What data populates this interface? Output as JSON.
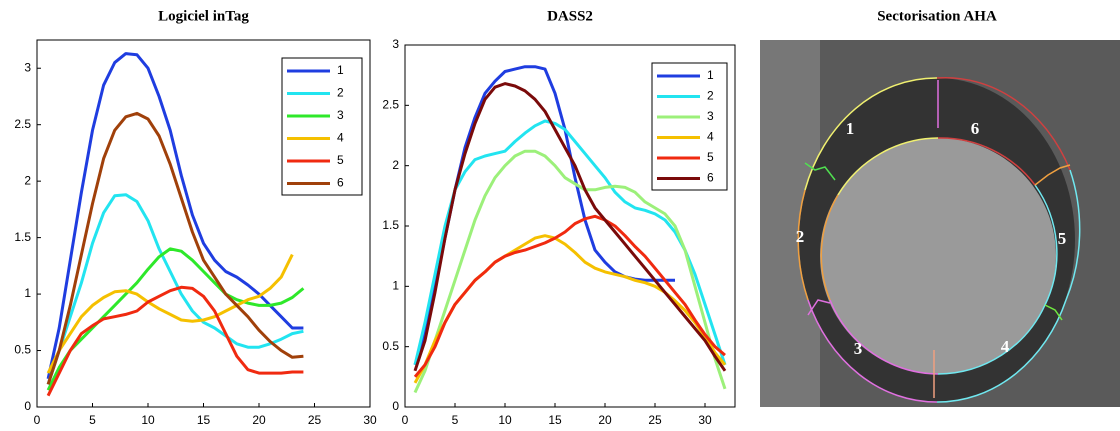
{
  "chart_data": [
    {
      "type": "line",
      "title": "Logiciel inTag",
      "legend": "upper right",
      "xlim": [
        0,
        30
      ],
      "xticks": [
        0,
        5,
        10,
        15,
        20,
        25,
        30
      ],
      "ylim": [
        0,
        3.25
      ],
      "yticks": [
        0,
        0.5,
        1,
        1.5,
        2,
        2.5,
        3
      ],
      "x": [
        1,
        2,
        3,
        4,
        5,
        6,
        7,
        8,
        9,
        10,
        11,
        12,
        13,
        14,
        15,
        16,
        17,
        18,
        19,
        20,
        21,
        22,
        23,
        24
      ],
      "series": [
        {
          "name": "1",
          "color": "#1f3de0",
          "values": [
            0.25,
            0.7,
            1.3,
            1.9,
            2.45,
            2.85,
            3.05,
            3.13,
            3.12,
            3.0,
            2.75,
            2.45,
            2.05,
            1.7,
            1.45,
            1.3,
            1.2,
            1.15,
            1.08,
            1.0,
            0.9,
            0.8,
            0.7,
            0.7
          ]
        },
        {
          "name": "2",
          "color": "#22e4f0",
          "values": [
            0.2,
            0.5,
            0.8,
            1.1,
            1.45,
            1.72,
            1.87,
            1.88,
            1.82,
            1.65,
            1.4,
            1.2,
            1.0,
            0.85,
            0.75,
            0.7,
            0.63,
            0.56,
            0.53,
            0.53,
            0.56,
            0.6,
            0.65,
            0.67
          ]
        },
        {
          "name": "3",
          "color": "#2ee82a",
          "values": [
            0.15,
            0.35,
            0.5,
            0.6,
            0.7,
            0.8,
            0.9,
            1.0,
            1.1,
            1.22,
            1.33,
            1.4,
            1.38,
            1.3,
            1.2,
            1.1,
            1.0,
            0.95,
            0.92,
            0.9,
            0.9,
            0.92,
            0.97,
            1.05
          ]
        },
        {
          "name": "4",
          "color": "#f5c000",
          "values": [
            0.3,
            0.5,
            0.65,
            0.8,
            0.9,
            0.97,
            1.02,
            1.03,
            1.0,
            0.93,
            0.87,
            0.82,
            0.77,
            0.76,
            0.77,
            0.8,
            0.85,
            0.9,
            0.95,
            0.98,
            1.05,
            1.15,
            1.35,
            null
          ]
        },
        {
          "name": "5",
          "color": "#f02a10",
          "values": [
            0.1,
            0.3,
            0.5,
            0.65,
            0.72,
            0.78,
            0.8,
            0.82,
            0.85,
            0.93,
            0.98,
            1.03,
            1.06,
            1.05,
            0.98,
            0.85,
            0.65,
            0.45,
            0.33,
            0.3,
            0.3,
            0.3,
            0.31,
            0.31
          ]
        },
        {
          "name": "6",
          "color": "#a0400a",
          "values": [
            0.2,
            0.5,
            0.9,
            1.35,
            1.8,
            2.2,
            2.45,
            2.57,
            2.6,
            2.55,
            2.4,
            2.15,
            1.85,
            1.55,
            1.3,
            1.15,
            1.0,
            0.9,
            0.8,
            0.68,
            0.58,
            0.5,
            0.44,
            0.45
          ]
        }
      ]
    },
    {
      "type": "line",
      "title": "DASS2",
      "legend": "upper right",
      "xlim": [
        0,
        33
      ],
      "xticks": [
        0,
        5,
        10,
        15,
        20,
        25,
        30
      ],
      "ylim": [
        0,
        3
      ],
      "yticks": [
        0,
        0.5,
        1,
        1.5,
        2,
        2.5,
        3
      ],
      "x": [
        1,
        2,
        3,
        4,
        5,
        6,
        7,
        8,
        9,
        10,
        11,
        12,
        13,
        14,
        15,
        16,
        17,
        18,
        19,
        20,
        21,
        22,
        23,
        24,
        25,
        26,
        27,
        28,
        29,
        30,
        31,
        32
      ],
      "series": [
        {
          "name": "1",
          "color": "#1f3de0",
          "values": [
            0.35,
            0.6,
            1.0,
            1.4,
            1.8,
            2.15,
            2.4,
            2.6,
            2.7,
            2.78,
            2.8,
            2.82,
            2.82,
            2.8,
            2.6,
            2.3,
            1.9,
            1.55,
            1.3,
            1.2,
            1.12,
            1.08,
            1.06,
            1.05,
            1.05,
            1.05,
            1.05,
            null,
            null,
            null,
            null,
            null
          ]
        },
        {
          "name": "2",
          "color": "#22e4f0",
          "values": [
            0.35,
            0.7,
            1.1,
            1.5,
            1.8,
            1.95,
            2.05,
            2.08,
            2.1,
            2.12,
            2.2,
            2.27,
            2.33,
            2.37,
            2.35,
            2.3,
            2.2,
            2.1,
            2.0,
            1.9,
            1.78,
            1.7,
            1.65,
            1.63,
            1.6,
            1.55,
            1.45,
            1.3,
            1.1,
            0.85,
            0.6,
            0.35
          ]
        },
        {
          "name": "3",
          "color": "#9cf07a",
          "values": [
            0.12,
            0.3,
            0.55,
            0.8,
            1.05,
            1.3,
            1.55,
            1.75,
            1.9,
            2.0,
            2.08,
            2.12,
            2.12,
            2.08,
            2.0,
            1.9,
            1.85,
            1.8,
            1.8,
            1.82,
            1.83,
            1.82,
            1.78,
            1.7,
            1.65,
            1.6,
            1.5,
            1.3,
            1.0,
            0.7,
            0.4,
            0.15
          ]
        },
        {
          "name": "4",
          "color": "#f5c000",
          "values": [
            0.2,
            0.35,
            0.55,
            0.7,
            0.85,
            0.95,
            1.05,
            1.12,
            1.2,
            1.25,
            1.3,
            1.35,
            1.4,
            1.42,
            1.4,
            1.35,
            1.28,
            1.2,
            1.15,
            1.12,
            1.1,
            1.08,
            1.05,
            1.03,
            1.0,
            0.95,
            0.88,
            0.8,
            0.7,
            0.58,
            0.45,
            0.35
          ]
        },
        {
          "name": "5",
          "color": "#f02a10",
          "values": [
            0.25,
            0.35,
            0.5,
            0.7,
            0.85,
            0.95,
            1.05,
            1.12,
            1.2,
            1.25,
            1.28,
            1.3,
            1.33,
            1.36,
            1.4,
            1.45,
            1.52,
            1.56,
            1.58,
            1.55,
            1.5,
            1.42,
            1.33,
            1.25,
            1.15,
            1.05,
            0.95,
            0.85,
            0.72,
            0.6,
            0.5,
            0.43
          ]
        },
        {
          "name": "6",
          "color": "#7a0a0a",
          "values": [
            0.3,
            0.55,
            0.95,
            1.4,
            1.8,
            2.1,
            2.35,
            2.55,
            2.65,
            2.68,
            2.66,
            2.62,
            2.55,
            2.45,
            2.3,
            2.15,
            2.0,
            1.8,
            1.65,
            1.55,
            1.45,
            1.35,
            1.25,
            1.15,
            1.05,
            0.95,
            0.85,
            0.75,
            0.65,
            0.55,
            0.42,
            0.3
          ]
        }
      ]
    }
  ],
  "image": {
    "title": "Sectorisation AHA",
    "sector_labels": [
      "1",
      "2",
      "3",
      "4",
      "5",
      "6"
    ]
  }
}
